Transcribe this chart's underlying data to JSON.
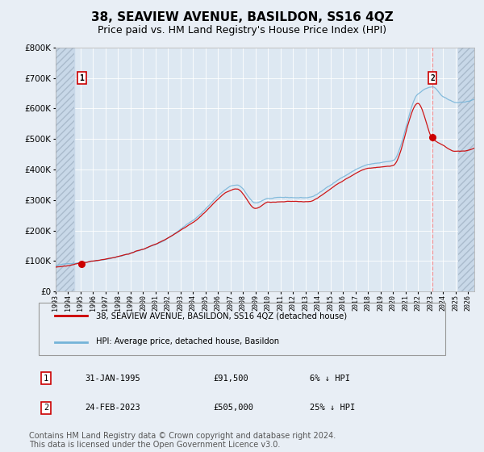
{
  "title": "38, SEAVIEW AVENUE, BASILDON, SS16 4QZ",
  "subtitle": "Price paid vs. HM Land Registry's House Price Index (HPI)",
  "title_fontsize": 11,
  "subtitle_fontsize": 9,
  "bg_color": "#e8eef5",
  "plot_bg_color": "#dde8f2",
  "hatch_bg_color": "#c8d8e8",
  "grid_color": "#ffffff",
  "red_line_color": "#cc0000",
  "blue_line_color": "#74b3d8",
  "sale1_date": 1995.08,
  "sale1_price": 91500,
  "sale2_date": 2023.14,
  "sale2_price": 505000,
  "ylim_max": 800000,
  "ylim_min": 0,
  "xmin": 1993.0,
  "xmax": 2026.5,
  "hatch_left_end": 1994.5,
  "hatch_right_start": 2025.2,
  "legend_line1": "38, SEAVIEW AVENUE, BASILDON, SS16 4QZ (detached house)",
  "legend_line2": "HPI: Average price, detached house, Basildon",
  "marker1_label": "1",
  "marker2_label": "2",
  "table_row1_num": "1",
  "table_row1_date": "31-JAN-1995",
  "table_row1_price": "£91,500",
  "table_row1_hpi": "6% ↓ HPI",
  "table_row2_num": "2",
  "table_row2_date": "24-FEB-2023",
  "table_row2_price": "£505,000",
  "table_row2_hpi": "25% ↓ HPI",
  "footer": "Contains HM Land Registry data © Crown copyright and database right 2024.\nThis data is licensed under the Open Government Licence v3.0.",
  "footer_fontsize": 7.0
}
